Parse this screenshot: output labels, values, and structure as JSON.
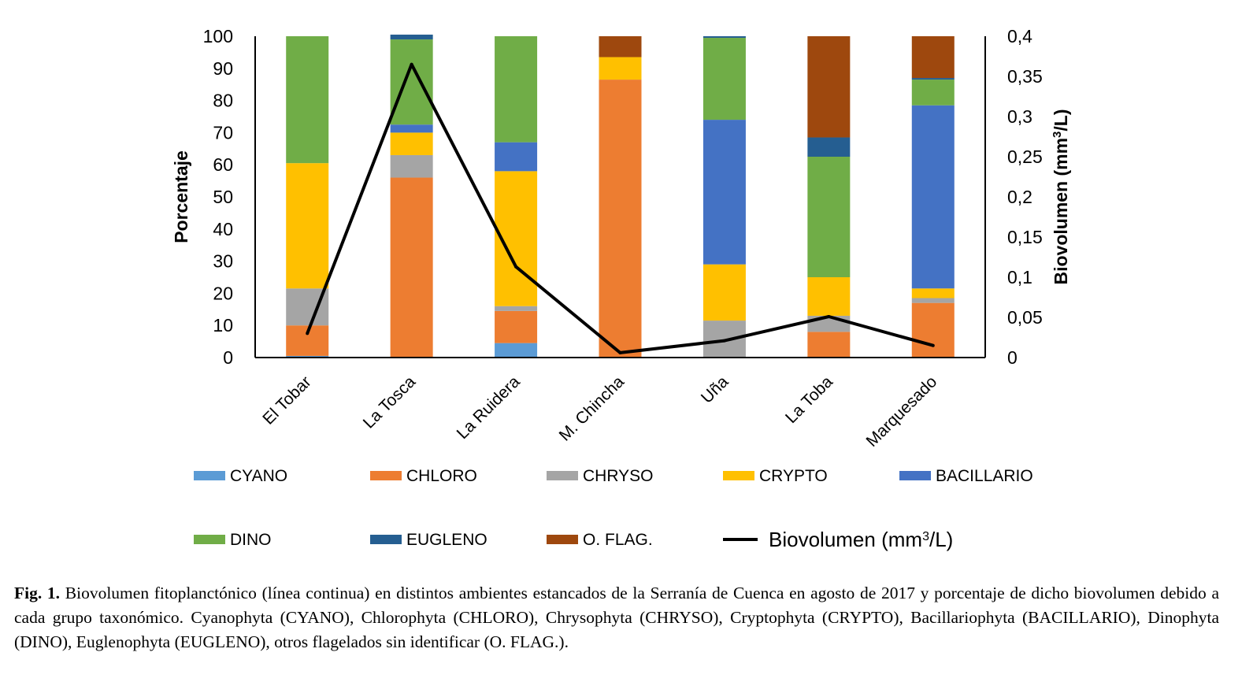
{
  "chart_data": {
    "type": "bar",
    "stacked": true,
    "categories": [
      "El Tobar",
      "La Tosca",
      "La Ruidera",
      "M. Chincha",
      "Uña",
      "La Toba",
      "Marquesado"
    ],
    "ylabel": "Porcentaje",
    "ylim": [
      0,
      100
    ],
    "yticks": [
      "0",
      "10",
      "20",
      "30",
      "40",
      "50",
      "60",
      "70",
      "80",
      "90",
      "100"
    ],
    "y2label": "Biovolumen (mm³/L)",
    "y2label_parts": [
      "Biovolumen (mm",
      "3",
      "/L)"
    ],
    "y2lim": [
      0,
      0.4
    ],
    "y2ticks": [
      "0",
      "0,05",
      "0,1",
      "0,15",
      "0,2",
      "0,25",
      "0,3",
      "0,35",
      "0,4"
    ],
    "grid": false,
    "legend_position": "bottom",
    "series": [
      {
        "name": "CYANO",
        "color": "#5B9BD5",
        "values": [
          0.5,
          0,
          4.5,
          0,
          0,
          0,
          0
        ]
      },
      {
        "name": "CHLORO",
        "color": "#ED7D31",
        "values": [
          9.5,
          56,
          10,
          86.5,
          0,
          8,
          17
        ]
      },
      {
        "name": "CHRYSO",
        "color": "#A5A5A5",
        "values": [
          11.5,
          7,
          1.5,
          0,
          11.5,
          5,
          1.5
        ]
      },
      {
        "name": "CRYPTO",
        "color": "#FFC000",
        "values": [
          39,
          7,
          42,
          7,
          17.5,
          12,
          3
        ]
      },
      {
        "name": "BACILLARIO",
        "color": "#4472C4",
        "values": [
          0,
          2.5,
          9,
          0,
          45,
          0,
          57
        ]
      },
      {
        "name": "DINO",
        "color": "#70AD47",
        "values": [
          39.5,
          26.5,
          33,
          0,
          25.5,
          37.5,
          8
        ]
      },
      {
        "name": "EUGLENO",
        "color": "#255E91",
        "values": [
          0,
          1.5,
          0,
          0,
          0.5,
          6,
          0.5
        ]
      },
      {
        "name": "O. FLAG.",
        "color": "#9E480E",
        "values": [
          0,
          0,
          0,
          6.5,
          0,
          31.5,
          13
        ]
      }
    ],
    "line": {
      "name": "Biovolumen (mm³/L)",
      "name_parts": [
        "Biovolumen (mm",
        "3",
        "/L)"
      ],
      "color": "#000000",
      "axis": "y2",
      "values": [
        0.03,
        0.365,
        0.113,
        0.006,
        0.021,
        0.051,
        0.015
      ]
    }
  },
  "caption": {
    "label": "Fig. 1.",
    "text": " Biovolumen fitoplanctónico (línea continua) en distintos ambientes estancados de la Serranía de Cuenca en agosto de 2017 y porcentaje de dicho biovolumen debido a cada grupo taxonómico. Cyanophyta (CYANO), Chlorophyta (CHLORO), Chrysophyta (CHRYSO), Cryptophyta (CRYPTO), Bacillariophyta (BACILLARIO), Dinophyta (DINO), Euglenophyta (EUGLENO), otros flagelados sin identificar (O. FLAG.)."
  }
}
